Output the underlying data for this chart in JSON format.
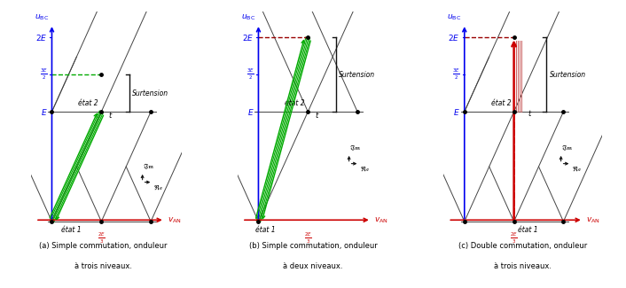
{
  "blue": "#0000EE",
  "red": "#CC0000",
  "dark_red": "#990000",
  "green": "#00AA00",
  "black": "#111111",
  "gray": "#444444",
  "E": 1.0,
  "captions": [
    [
      "(a) Simple commutation, onduleur",
      "à trois niveaux."
    ],
    [
      "(b) Simple commutation, onduleur",
      "à deux niveaux."
    ],
    [
      "(c) Double commutation, onduleur",
      "à trois niveaux."
    ]
  ]
}
